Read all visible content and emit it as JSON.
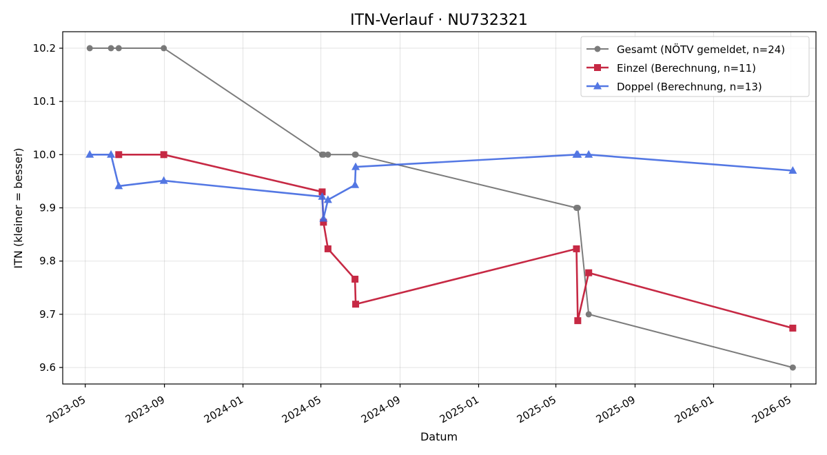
{
  "chart_data": {
    "type": "line",
    "title": "ITN-Verlauf · NU732321",
    "xlabel": "Datum",
    "ylabel": "ITN  (kleiner = besser)",
    "x_type": "date",
    "xlim": [
      "2023-03-27",
      "2026-06-09"
    ],
    "ylim": [
      9.569,
      10.231
    ],
    "x_ticks": [
      "2023-05-01",
      "2023-09-01",
      "2024-01-01",
      "2024-05-01",
      "2024-09-01",
      "2025-01-01",
      "2025-05-01",
      "2025-09-01",
      "2026-01-01",
      "2026-05-01"
    ],
    "x_tick_labels": [
      "2023-05",
      "2023-09",
      "2024-01",
      "2024-05",
      "2024-09",
      "2025-01",
      "2025-05",
      "2025-09",
      "2026-01",
      "2026-05"
    ],
    "y_ticks": [
      9.6,
      9.7,
      9.8,
      9.9,
      10.0,
      10.1,
      10.2
    ],
    "y_tick_labels": [
      "9.6",
      "9.7",
      "9.8",
      "9.9",
      "10.0",
      "10.1",
      "10.2"
    ],
    "grid": true,
    "legend_position": "top-right",
    "series": [
      {
        "name": "Gesamt (NÖTV gemeldet, n=24)",
        "color": "#444444",
        "opacity": 0.7,
        "marker": "circle",
        "x": [
          "2023-05-08",
          "2023-06-10",
          "2023-06-22",
          "2023-08-31",
          "2024-05-03",
          "2024-05-05",
          "2024-05-12",
          "2024-06-23",
          "2024-06-24",
          "2025-06-02",
          "2025-06-04",
          "2025-06-21",
          "2026-05-04"
        ],
        "y": [
          10.2,
          10.2,
          10.2,
          10.2,
          10.0,
          10.0,
          10.0,
          10.0,
          10.0,
          9.9,
          9.9,
          9.7,
          9.6
        ]
      },
      {
        "name": "Einzel (Berechnung, n=11)",
        "color": "#c41e3a",
        "opacity": 0.95,
        "marker": "square",
        "x": [
          "2023-06-22",
          "2023-08-31",
          "2024-05-03",
          "2024-05-05",
          "2024-05-12",
          "2024-06-23",
          "2024-06-24",
          "2025-06-02",
          "2025-06-04",
          "2025-06-21",
          "2026-05-04"
        ],
        "y": [
          10.0,
          10.0,
          9.93,
          9.873,
          9.823,
          9.766,
          9.719,
          9.823,
          9.688,
          9.778,
          9.674
        ]
      },
      {
        "name": "Doppel (Berechnung, n=13)",
        "color": "#4169e1",
        "opacity": 0.9,
        "marker": "triangle",
        "x": [
          "2023-05-08",
          "2023-06-10",
          "2023-06-22",
          "2023-08-31",
          "2024-05-03",
          "2024-05-05",
          "2024-05-12",
          "2024-06-23",
          "2024-06-24",
          "2025-06-02",
          "2025-06-04",
          "2025-06-21",
          "2026-05-04"
        ],
        "y": [
          10.0,
          10.0,
          9.941,
          9.951,
          9.921,
          9.88,
          9.915,
          9.943,
          9.977,
          10.0,
          10.0,
          10.0,
          9.97
        ]
      }
    ]
  }
}
